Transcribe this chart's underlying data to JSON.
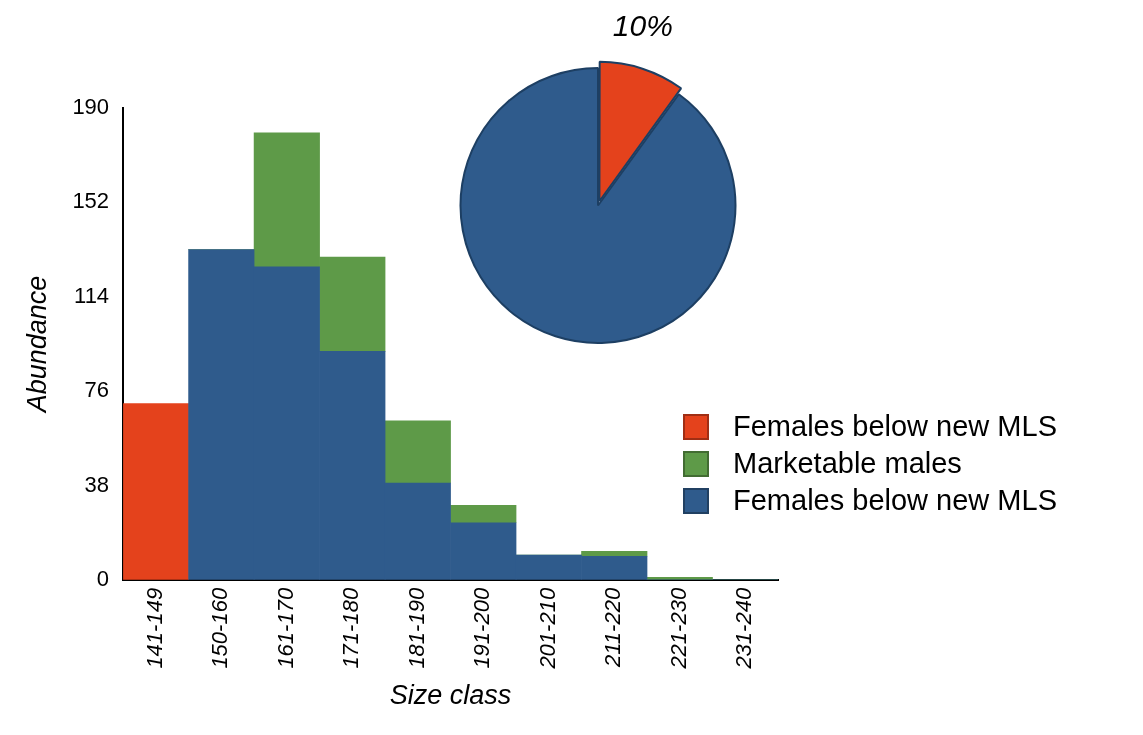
{
  "chart_data": [
    {
      "type": "bar",
      "stacked": true,
      "xlabel": "Size class",
      "ylabel": "Abundance",
      "categories": [
        "141-149",
        "150-160",
        "161-170",
        "171-180",
        "181-190",
        "191-200",
        "201-210",
        "211-220",
        "221-230",
        "231-240"
      ],
      "series": [
        {
          "name": "Females below new MLS",
          "color": "#2f5b8c",
          "values": [
            null,
            133,
            126,
            92,
            39,
            23,
            10,
            9.5,
            0,
            0
          ]
        },
        {
          "name": "Marketable males",
          "color": "#5e9a48",
          "values": [
            null,
            0,
            54,
            38,
            25,
            7,
            0,
            2,
            1,
            0
          ]
        },
        {
          "name": "Females below new MLS",
          "color": "#e4421c",
          "values": [
            71,
            null,
            null,
            null,
            null,
            null,
            null,
            null,
            null,
            null
          ]
        }
      ],
      "ylim": [
        0,
        190
      ],
      "yticks": [
        0,
        38,
        76,
        114,
        152,
        190
      ],
      "grid": false,
      "legend": "right"
    },
    {
      "type": "pie",
      "categories": [
        null,
        null
      ],
      "values": [
        10,
        90
      ],
      "colors": [
        "#e4421c",
        "#2f5b8c"
      ],
      "value_labels": [
        "10%",
        null
      ]
    }
  ]
}
